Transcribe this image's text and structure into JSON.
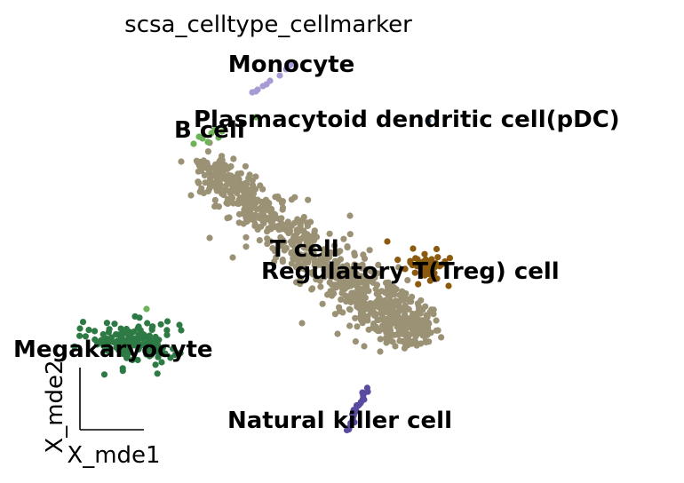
{
  "chart_data": {
    "type": "scatter",
    "title": "scsa_celltype_cellmarker",
    "xlabel": "X_mde1",
    "ylabel": "X_mde2",
    "grid": false,
    "legend": "on data",
    "series": [
      {
        "name": "T cell",
        "color": "#9b9276"
      },
      {
        "name": "Regulatory T(Treg) cell",
        "color": "#8b5a0e"
      },
      {
        "name": "Megakaryocyte",
        "color": "#2e7a45"
      },
      {
        "name": "B cell",
        "color": "#6db35a"
      },
      {
        "name": "Monocyte",
        "color": "#a89ad4"
      },
      {
        "name": "Natural killer cell",
        "color": "#5a4aa0"
      },
      {
        "name": "Plasmacytoid dendritic cell(pDC)",
        "color": "#3a7ab0"
      }
    ]
  }
}
